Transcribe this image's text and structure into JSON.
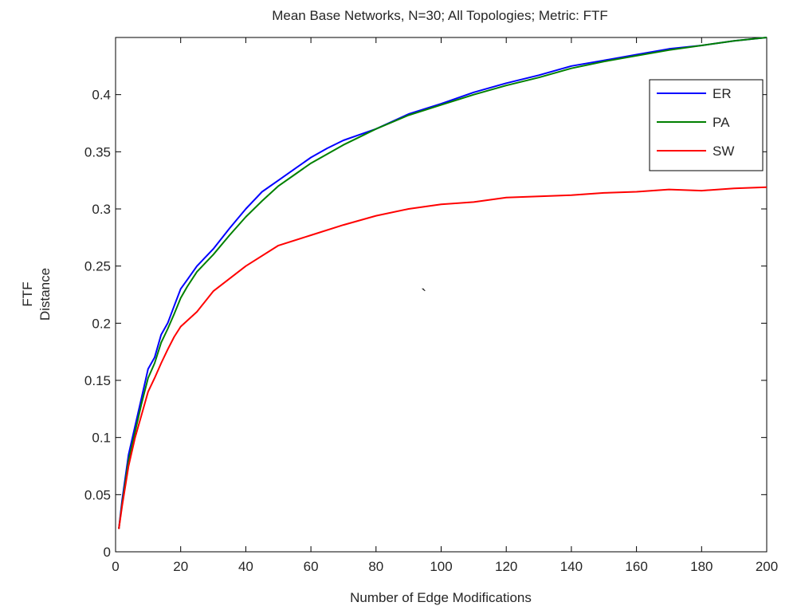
{
  "chart_data": {
    "type": "line",
    "title": "Mean Base Networks, N=30; All Topologies; Metric: FTF",
    "xlabel": "Number of Edge Modifications",
    "ylabel_lines": [
      "FTF",
      "Distance"
    ],
    "xlim": [
      0,
      200
    ],
    "ylim": [
      0,
      0.45
    ],
    "xticks": [
      0,
      20,
      40,
      60,
      80,
      100,
      120,
      140,
      160,
      180,
      200
    ],
    "xtick_labels": [
      "0",
      "20",
      "40",
      "60",
      "80",
      "100",
      "120",
      "140",
      "160",
      "180",
      "200"
    ],
    "yticks": [
      0,
      0.05,
      0.1,
      0.15,
      0.2,
      0.25,
      0.3,
      0.35,
      0.4
    ],
    "ytick_labels": [
      "0",
      "0.05",
      "0.1",
      "0.15",
      "0.2",
      "0.25",
      "0.3",
      "0.35",
      "0.4"
    ],
    "grid": false,
    "legend_position": "top-right",
    "annotation": "`",
    "series": [
      {
        "name": "ER",
        "color": "#0000ff",
        "x": [
          1,
          2,
          4,
          6,
          8,
          10,
          12,
          14,
          16,
          18,
          20,
          22,
          25,
          30,
          35,
          40,
          45,
          50,
          55,
          60,
          65,
          70,
          75,
          80,
          90,
          100,
          110,
          120,
          130,
          140,
          150,
          160,
          170,
          180,
          190,
          200
        ],
        "y": [
          0.02,
          0.045,
          0.085,
          0.11,
          0.135,
          0.16,
          0.17,
          0.19,
          0.2,
          0.215,
          0.23,
          0.238,
          0.25,
          0.265,
          0.283,
          0.3,
          0.315,
          0.325,
          0.335,
          0.345,
          0.353,
          0.36,
          0.365,
          0.37,
          0.383,
          0.392,
          0.402,
          0.41,
          0.417,
          0.425,
          0.43,
          0.435,
          0.44,
          0.443,
          0.447,
          0.45
        ]
      },
      {
        "name": "PA",
        "color": "#008000",
        "x": [
          1,
          2,
          4,
          6,
          8,
          10,
          12,
          14,
          16,
          18,
          20,
          22,
          25,
          30,
          35,
          40,
          45,
          50,
          55,
          60,
          65,
          70,
          75,
          80,
          90,
          100,
          110,
          120,
          130,
          140,
          150,
          160,
          170,
          180,
          190,
          200
        ],
        "y": [
          0.02,
          0.042,
          0.08,
          0.105,
          0.13,
          0.152,
          0.165,
          0.183,
          0.195,
          0.208,
          0.222,
          0.232,
          0.245,
          0.26,
          0.277,
          0.293,
          0.307,
          0.32,
          0.33,
          0.34,
          0.348,
          0.356,
          0.363,
          0.37,
          0.382,
          0.391,
          0.4,
          0.408,
          0.415,
          0.423,
          0.429,
          0.434,
          0.439,
          0.443,
          0.447,
          0.45
        ]
      },
      {
        "name": "SW",
        "color": "#ff0000",
        "x": [
          1,
          2,
          4,
          6,
          8,
          10,
          12,
          14,
          16,
          18,
          20,
          25,
          30,
          40,
          50,
          60,
          70,
          80,
          90,
          100,
          110,
          120,
          130,
          140,
          150,
          160,
          170,
          180,
          190,
          200
        ],
        "y": [
          0.02,
          0.04,
          0.075,
          0.1,
          0.12,
          0.14,
          0.152,
          0.165,
          0.177,
          0.188,
          0.197,
          0.21,
          0.228,
          0.25,
          0.268,
          0.277,
          0.286,
          0.294,
          0.3,
          0.304,
          0.306,
          0.31,
          0.311,
          0.312,
          0.314,
          0.315,
          0.317,
          0.316,
          0.318,
          0.319
        ]
      }
    ]
  }
}
